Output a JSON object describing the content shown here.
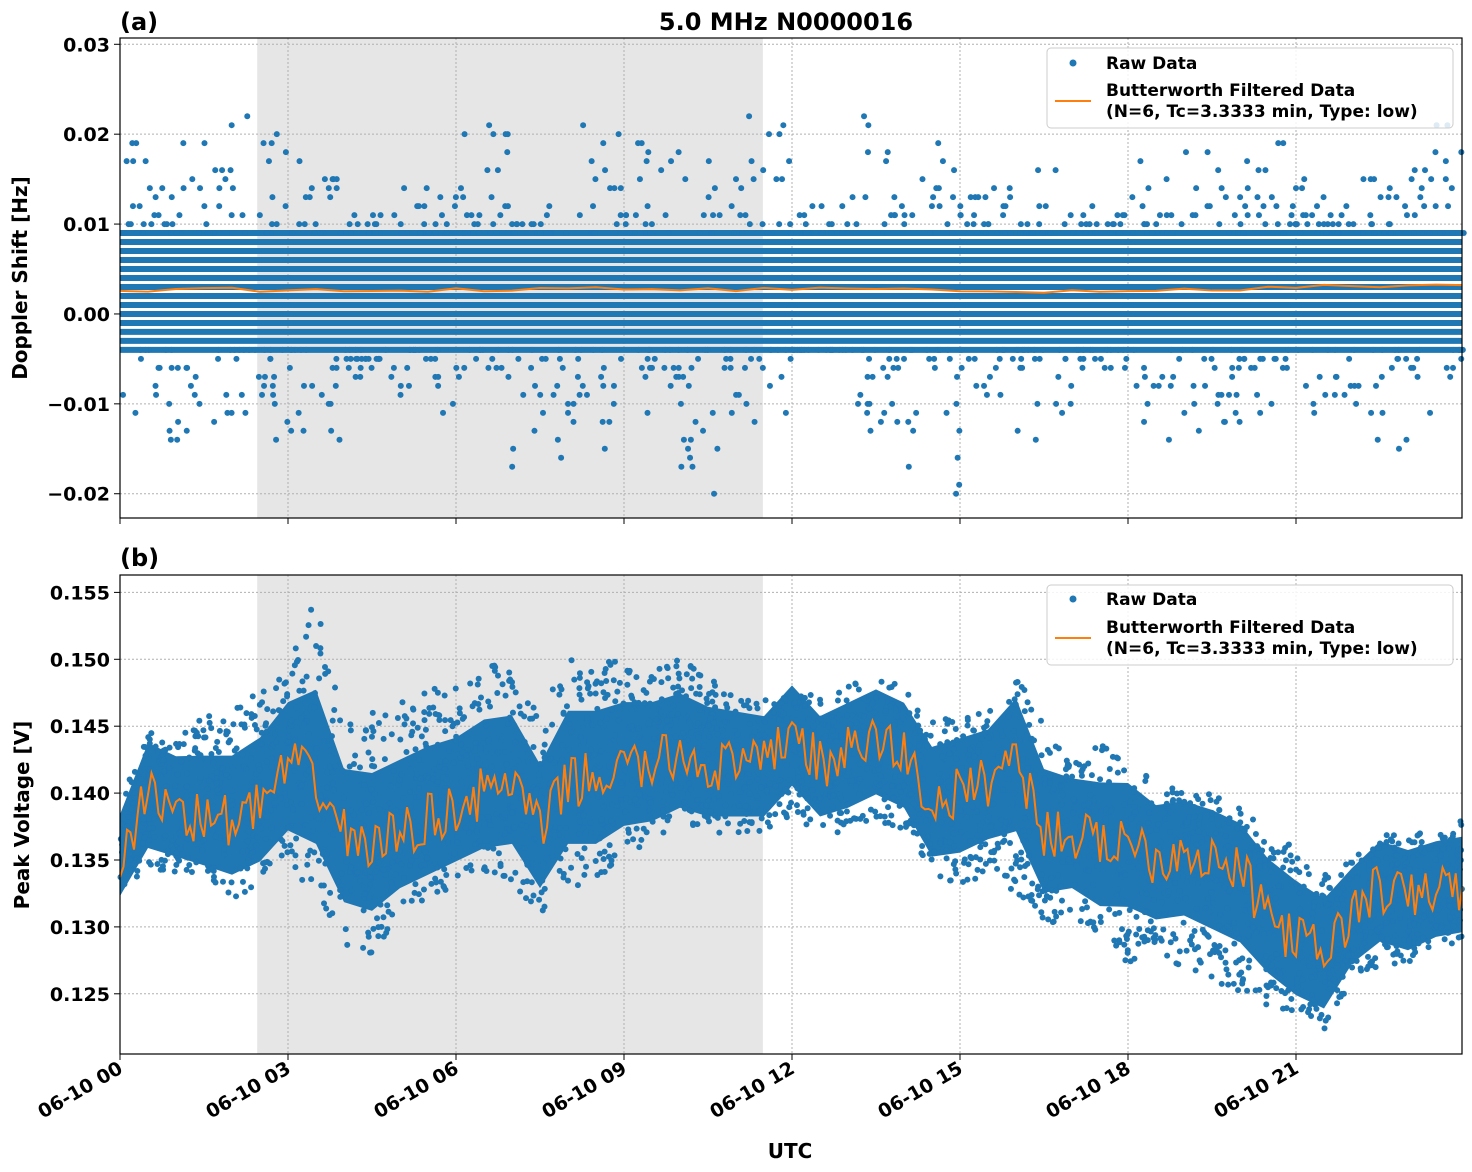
{
  "title": "5.0 MHz N0000016",
  "xlabel": "UTC",
  "colors": {
    "raw": "#1f77b4",
    "filtered": "#ff7f0e",
    "shade": "#e6e6e6"
  },
  "legend": {
    "raw": "Raw Data",
    "filtered_line1": "Butterworth Filtered Data",
    "filtered_line2": "(N=6, Tc=3.3333 min, Type: low)"
  },
  "x_ticks": [
    "06-10 00",
    "06-10 03",
    "06-10 06",
    "06-10 09",
    "06-10 12",
    "06-10 15",
    "06-10 18",
    "06-10 21"
  ],
  "chart_data": [
    {
      "type": "scatter",
      "panel_label": "(a)",
      "ylabel": "Doppler Shift [Hz]",
      "xlim_hours_utc": [
        0,
        24
      ],
      "ylim": [
        -0.0227,
        0.0307
      ],
      "y_ticks": [
        "0.03",
        "0.02",
        "0.01",
        "0.00",
        "−0.01",
        "−0.02"
      ],
      "y_tick_values": [
        0.03,
        0.02,
        0.01,
        0.0,
        -0.01,
        -0.02
      ],
      "grid": true,
      "legend_position": "upper-right",
      "shaded_interval_hours_utc": [
        2.45,
        11.48
      ],
      "raw_dense_band": [
        -0.004,
        0.009
      ],
      "raw_quantization": 0.001,
      "raw_hourly_extent": {
        "hour": [
          0,
          1,
          2,
          3,
          4,
          5,
          6,
          7,
          8,
          9,
          10,
          11,
          12,
          13,
          14,
          15,
          16,
          17,
          18,
          19,
          20,
          21,
          22,
          23
        ],
        "max": [
          0.019,
          0.021,
          0.022,
          0.017,
          0.012,
          0.014,
          0.021,
          0.012,
          0.021,
          0.019,
          0.021,
          0.022,
          0.012,
          0.022,
          0.021,
          0.014,
          0.017,
          0.012,
          0.017,
          0.021,
          0.019,
          0.015,
          0.016,
          0.021
        ],
        "min": [
          -0.016,
          -0.014,
          -0.015,
          -0.014,
          -0.007,
          -0.012,
          -0.009,
          -0.017,
          -0.015,
          -0.013,
          -0.02,
          -0.014,
          -0.004,
          -0.014,
          -0.02,
          -0.01,
          -0.014,
          -0.006,
          -0.014,
          -0.013,
          -0.012,
          -0.011,
          -0.015,
          -0.012
        ]
      },
      "filtered": {
        "x_hours_utc": [
          0,
          0.5,
          1,
          1.5,
          2,
          2.5,
          3,
          3.5,
          4,
          4.5,
          5,
          5.5,
          6,
          6.5,
          7,
          7.5,
          8,
          8.5,
          9,
          9.5,
          10,
          10.5,
          11,
          11.5,
          12,
          12.5,
          13,
          13.5,
          14,
          14.5,
          15,
          15.5,
          16,
          16.5,
          17,
          17.5,
          18,
          18.5,
          19,
          19.5,
          20,
          20.5,
          21,
          21.5,
          22,
          22.5,
          23,
          23.5,
          24
        ],
        "y": [
          0.0028,
          0.0027,
          0.0027,
          0.0028,
          0.0028,
          0.0027,
          0.0028,
          0.0027,
          0.0027,
          0.0026,
          0.0027,
          0.0027,
          0.0027,
          0.0027,
          0.0028,
          0.0027,
          0.0027,
          0.0028,
          0.0027,
          0.0026,
          0.0027,
          0.0027,
          0.0027,
          0.0027,
          0.0028,
          0.0027,
          0.0026,
          0.0027,
          0.0026,
          0.0025,
          0.0026,
          0.0024,
          0.0025,
          0.0026,
          0.0025,
          0.0026,
          0.0027,
          0.0026,
          0.0027,
          0.0027,
          0.0027,
          0.0028,
          0.0029,
          0.003,
          0.0031,
          0.0032,
          0.0033,
          0.0034,
          0.0033
        ]
      }
    },
    {
      "type": "scatter",
      "panel_label": "(b)",
      "ylabel": "Peak Voltage [V]",
      "xlim_hours_utc": [
        0,
        24
      ],
      "ylim": [
        0.1205,
        0.1563
      ],
      "y_ticks": [
        "0.155",
        "0.150",
        "0.145",
        "0.140",
        "0.135",
        "0.130",
        "0.125"
      ],
      "y_tick_values": [
        0.155,
        0.15,
        0.145,
        0.14,
        0.135,
        0.13,
        0.125
      ],
      "grid": true,
      "legend_position": "upper-right",
      "shaded_interval_hours_utc": [
        2.45,
        11.48
      ],
      "x_hours_utc": [
        0,
        0.5,
        1,
        1.5,
        2,
        2.5,
        3,
        3.5,
        4,
        4.5,
        5,
        5.5,
        6,
        6.5,
        7,
        7.5,
        8,
        8.5,
        9,
        9.5,
        10,
        10.5,
        11,
        11.5,
        12,
        12.5,
        13,
        13.5,
        14,
        14.5,
        15,
        15.5,
        16,
        16.5,
        17,
        17.5,
        18,
        18.5,
        19,
        19.5,
        20,
        20.5,
        21,
        21.5,
        22,
        22.5,
        23,
        23.5,
        24
      ],
      "filtered": [
        0.135,
        0.14,
        0.139,
        0.138,
        0.138,
        0.139,
        0.142,
        0.141,
        0.137,
        0.136,
        0.137,
        0.138,
        0.139,
        0.14,
        0.141,
        0.137,
        0.141,
        0.141,
        0.142,
        0.142,
        0.143,
        0.142,
        0.142,
        0.142,
        0.145,
        0.142,
        0.143,
        0.144,
        0.143,
        0.139,
        0.14,
        0.141,
        0.143,
        0.137,
        0.137,
        0.136,
        0.137,
        0.135,
        0.136,
        0.135,
        0.134,
        0.131,
        0.129,
        0.128,
        0.131,
        0.133,
        0.132,
        0.133,
        0.133
      ],
      "raw_max": [
        0.139,
        0.145,
        0.144,
        0.146,
        0.146,
        0.148,
        0.15,
        0.1545,
        0.145,
        0.146,
        0.147,
        0.148,
        0.148,
        0.15,
        0.149,
        0.146,
        0.15,
        0.15,
        0.15,
        0.15,
        0.15,
        0.149,
        0.148,
        0.147,
        0.148,
        0.147,
        0.148,
        0.149,
        0.148,
        0.146,
        0.146,
        0.146,
        0.149,
        0.145,
        0.143,
        0.144,
        0.142,
        0.141,
        0.14,
        0.14,
        0.139,
        0.137,
        0.136,
        0.134,
        0.135,
        0.137,
        0.137,
        0.137,
        0.138
      ],
      "raw_min": [
        0.133,
        0.134,
        0.134,
        0.134,
        0.132,
        0.133,
        0.134,
        0.133,
        0.128,
        0.128,
        0.131,
        0.132,
        0.133,
        0.134,
        0.133,
        0.131,
        0.133,
        0.133,
        0.135,
        0.136,
        0.137,
        0.137,
        0.137,
        0.137,
        0.138,
        0.137,
        0.137,
        0.138,
        0.137,
        0.134,
        0.133,
        0.134,
        0.132,
        0.13,
        0.131,
        0.129,
        0.127,
        0.128,
        0.127,
        0.126,
        0.125,
        0.124,
        0.123,
        0.122,
        0.126,
        0.127,
        0.127,
        0.128,
        0.129
      ]
    }
  ]
}
